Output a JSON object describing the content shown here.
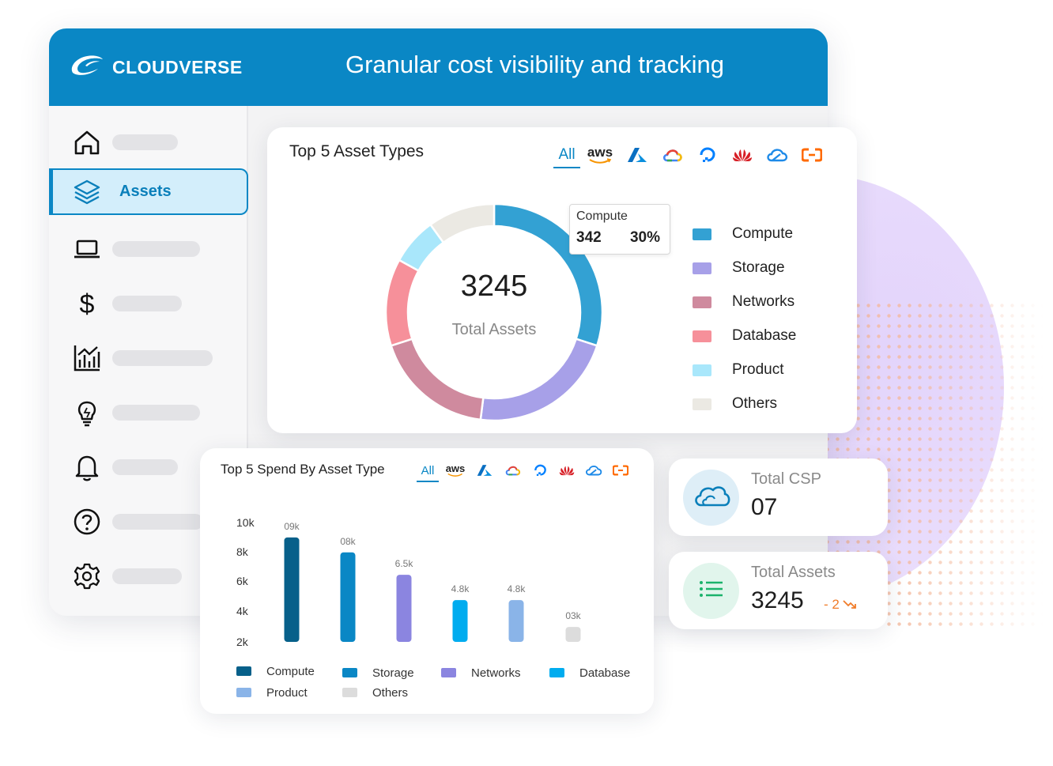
{
  "header": {
    "brand": "CLOUDVERSE",
    "title": "Granular cost visibility and tracking"
  },
  "sidebar": {
    "items": [
      {
        "icon": "home-icon",
        "label": ""
      },
      {
        "icon": "layers-icon",
        "label": "Assets",
        "active": true
      },
      {
        "icon": "laptop-icon",
        "label": ""
      },
      {
        "icon": "dollar-icon",
        "label": ""
      },
      {
        "icon": "analytics-icon",
        "label": ""
      },
      {
        "icon": "lightbulb-icon",
        "label": ""
      },
      {
        "icon": "bell-icon",
        "label": ""
      },
      {
        "icon": "help-icon",
        "label": ""
      },
      {
        "icon": "settings-icon",
        "label": ""
      }
    ]
  },
  "providers": {
    "all_label": "All",
    "aws_label": "aws",
    "icons": [
      "azure-icon",
      "google-cloud-icon",
      "digitalocean-icon",
      "huawei-icon",
      "tencent-cloud-icon",
      "alibaba-cloud-icon"
    ]
  },
  "donut_card": {
    "title": "Top 5 Asset Types",
    "center_value": "3245",
    "center_label": "Total Assets",
    "tooltip": {
      "name": "Compute",
      "count": "342",
      "percent": "30%"
    },
    "legend": [
      "Compute",
      "Storage",
      "Networks",
      "Database",
      "Product",
      "Others"
    ]
  },
  "bar_card": {
    "title": "Top 5 Spend By Asset Type",
    "legend": [
      "Compute",
      "Storage",
      "Networks",
      "Database",
      "Product",
      "Others"
    ]
  },
  "stats": {
    "csp": {
      "label": "Total CSP",
      "value": "07"
    },
    "assets": {
      "label": "Total Assets",
      "value": "3245",
      "delta": "- 2"
    }
  },
  "colors": {
    "brand": "#0a87c5",
    "compute_donut": "#33a1d3",
    "storage_donut": "#a7a0e8",
    "networks_donut": "#cf8a9e",
    "database_donut": "#f6909a",
    "product_donut": "#a9e7fb",
    "others_donut": "#ebe9e3",
    "compute_bar": "#07608a",
    "storage_bar": "#0a87c5",
    "networks_bar": "#8b85e0",
    "database_bar": "#00acef",
    "product_bar": "#8ab4e8",
    "others_bar": "#dcdcdc"
  },
  "chart_data": [
    {
      "type": "pie",
      "title": "Top 5 Asset Types",
      "categories": [
        "Compute",
        "Storage",
        "Networks",
        "Database",
        "Product",
        "Others"
      ],
      "values": [
        30,
        22,
        18,
        13,
        7,
        10
      ],
      "unit": "%",
      "center_total": 3245,
      "annotation": {
        "category": "Compute",
        "count": 342,
        "percent": "30%"
      },
      "legend_placement": "right"
    },
    {
      "type": "bar",
      "title": "Top 5 Spend By Asset Type",
      "categories": [
        "Compute",
        "Storage",
        "Networks",
        "Database",
        "Product",
        "Others"
      ],
      "values": [
        9,
        8,
        6.5,
        4.8,
        4.8,
        3
      ],
      "data_labels": [
        "09k",
        "08k",
        "6.5k",
        "4.8k",
        "4.8k",
        "03k"
      ],
      "ytick_labels": [
        "10k",
        "8k",
        "6k",
        "4k",
        "2k"
      ],
      "ylim": [
        2,
        10
      ],
      "grid": false,
      "legend_placement": "bottom"
    }
  ]
}
